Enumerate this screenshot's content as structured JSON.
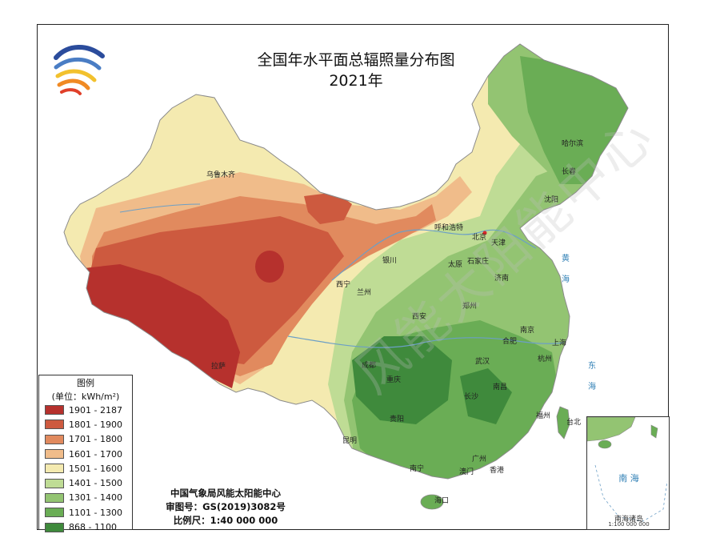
{
  "title": {
    "line1": "全国年水平面总辐照量分布图",
    "line2": "2021年"
  },
  "legend": {
    "title": "图例",
    "unit": "(单位：kWh/m²)",
    "items": [
      {
        "label": "1901 - 2187",
        "color": "#b6312d"
      },
      {
        "label": "1801 - 1900",
        "color": "#cd5a3f"
      },
      {
        "label": "1701 - 1800",
        "color": "#e18a5e"
      },
      {
        "label": "1601 - 1700",
        "color": "#f0bc8a"
      },
      {
        "label": "1501 - 1600",
        "color": "#f4eab0"
      },
      {
        "label": "1401 - 1500",
        "color": "#bfdc95"
      },
      {
        "label": "1301 - 1400",
        "color": "#93c472"
      },
      {
        "label": "1101 - 1300",
        "color": "#6aad55"
      },
      {
        "label": "868 - 1100",
        "color": "#3f8a3c"
      }
    ]
  },
  "credits": {
    "org": "中国气象局风能太阳能中心",
    "map_no": "审图号：GS(2019)3082号",
    "scale": "比例尺：1:40 000 000"
  },
  "inset": {
    "sea": "南  海",
    "label": "南海诸岛",
    "scale": "1:100 000 000"
  },
  "cities": [
    "乌鲁木齐",
    "拉萨",
    "西宁",
    "兰州",
    "银川",
    "呼和浩特",
    "北京",
    "天津",
    "太原",
    "石家庄",
    "济南",
    "郑州",
    "西安",
    "成都",
    "重庆",
    "贵阳",
    "昆明",
    "南宁",
    "广州",
    "香港",
    "澳门",
    "海口",
    "武汉",
    "长沙",
    "南昌",
    "合肥",
    "南京",
    "上海",
    "杭州",
    "福州",
    "台北",
    "沈阳",
    "长春",
    "哈尔滨"
  ],
  "seas": [
    "黄",
    "海",
    "东",
    "海"
  ],
  "watermark": "风能太阳能中心"
}
